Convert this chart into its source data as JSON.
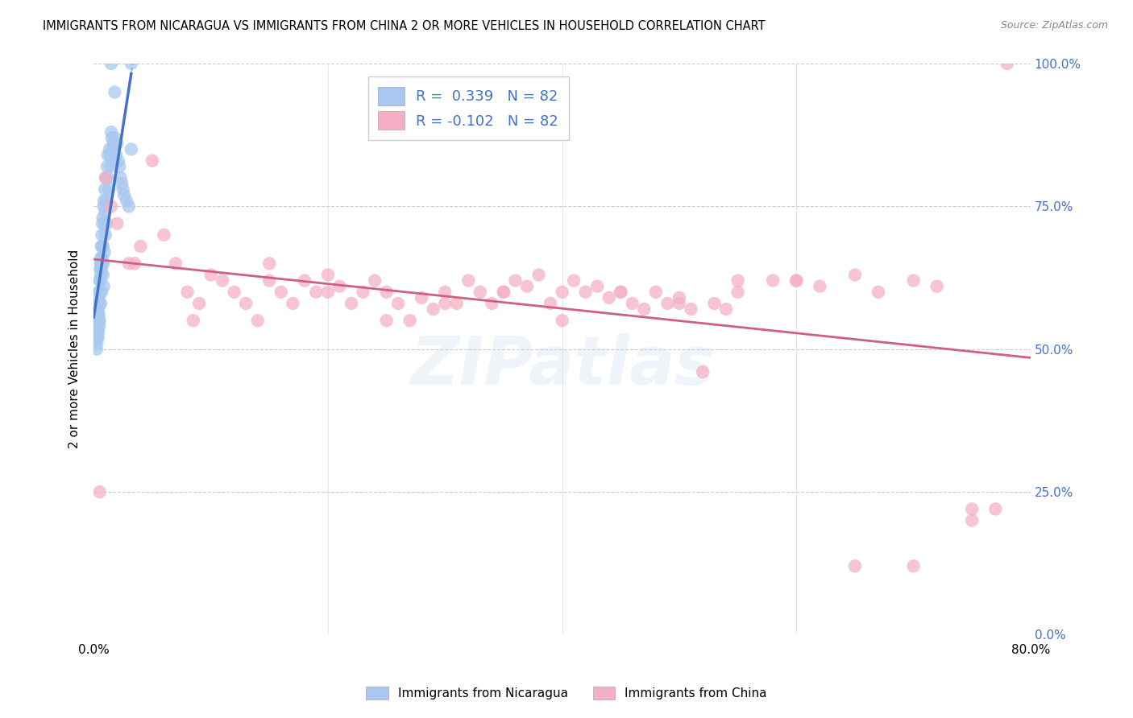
{
  "title": "IMMIGRANTS FROM NICARAGUA VS IMMIGRANTS FROM CHINA 2 OR MORE VEHICLES IN HOUSEHOLD CORRELATION CHART",
  "source": "Source: ZipAtlas.com",
  "ylabel": "2 or more Vehicles in Household",
  "ytick_vals": [
    0.0,
    25.0,
    50.0,
    75.0,
    100.0
  ],
  "xlim": [
    0.0,
    80.0
  ],
  "ylim": [
    0.0,
    100.0
  ],
  "legend_blue_label": "Immigrants from Nicaragua",
  "legend_pink_label": "Immigrants from China",
  "R_blue": 0.339,
  "N_blue": 82,
  "R_pink": -0.102,
  "N_pink": 82,
  "blue_color": "#a8c8f0",
  "pink_color": "#f5b0c5",
  "blue_line_color": "#4472c4",
  "pink_line_color": "#d06080",
  "watermark": "ZIPatlas",
  "blue_x": [
    0.15,
    0.18,
    0.2,
    0.22,
    0.22,
    0.25,
    0.25,
    0.28,
    0.3,
    0.3,
    0.32,
    0.35,
    0.35,
    0.38,
    0.38,
    0.4,
    0.4,
    0.42,
    0.42,
    0.45,
    0.45,
    0.48,
    0.5,
    0.5,
    0.52,
    0.52,
    0.55,
    0.58,
    0.6,
    0.6,
    0.62,
    0.65,
    0.65,
    0.68,
    0.7,
    0.72,
    0.75,
    0.78,
    0.8,
    0.82,
    0.85,
    0.88,
    0.9,
    0.92,
    0.95,
    0.98,
    1.0,
    1.05,
    1.08,
    1.1,
    1.15,
    1.2,
    1.25,
    1.3,
    1.35,
    1.4,
    1.45,
    1.5,
    1.55,
    1.6,
    1.7,
    1.8,
    1.9,
    2.0,
    2.1,
    2.2,
    2.3,
    2.4,
    2.5,
    2.6,
    2.8,
    3.0,
    3.2,
    3.2,
    1.5,
    1.8,
    0.55,
    0.65,
    0.7,
    0.75,
    0.8,
    0.85
  ],
  "blue_y": [
    55,
    52,
    53,
    54,
    56,
    50,
    52,
    51,
    53,
    55,
    54,
    56,
    57,
    58,
    52,
    53,
    55,
    57,
    59,
    60,
    56,
    54,
    58,
    62,
    60,
    55,
    64,
    65,
    63,
    58,
    66,
    68,
    65,
    60,
    70,
    68,
    72,
    73,
    68,
    65,
    75,
    76,
    72,
    67,
    78,
    74,
    70,
    80,
    76,
    72,
    82,
    84,
    80,
    78,
    85,
    84,
    82,
    88,
    87,
    85,
    86,
    87,
    84,
    86,
    83,
    82,
    80,
    79,
    78,
    77,
    76,
    75,
    85,
    100,
    100,
    95,
    62,
    64,
    65,
    66,
    63,
    61
  ],
  "pink_x": [
    0.5,
    1.0,
    1.5,
    2.0,
    3.0,
    4.0,
    5.0,
    6.0,
    7.0,
    8.0,
    9.0,
    10.0,
    11.0,
    12.0,
    13.0,
    14.0,
    15.0,
    16.0,
    17.0,
    18.0,
    19.0,
    20.0,
    21.0,
    22.0,
    23.0,
    24.0,
    25.0,
    26.0,
    27.0,
    28.0,
    29.0,
    30.0,
    31.0,
    32.0,
    33.0,
    34.0,
    35.0,
    36.0,
    37.0,
    38.0,
    39.0,
    40.0,
    41.0,
    42.0,
    43.0,
    44.0,
    45.0,
    46.0,
    47.0,
    48.0,
    49.0,
    50.0,
    51.0,
    52.0,
    53.0,
    54.0,
    55.0,
    58.0,
    60.0,
    62.0,
    65.0,
    67.0,
    70.0,
    72.0,
    75.0,
    77.0,
    3.5,
    8.5,
    15.0,
    20.0,
    25.0,
    30.0,
    35.0,
    40.0,
    45.0,
    50.0,
    55.0,
    60.0,
    65.0,
    70.0,
    75.0,
    78.0
  ],
  "pink_y": [
    25,
    80,
    75,
    72,
    65,
    68,
    83,
    70,
    65,
    60,
    58,
    63,
    62,
    60,
    58,
    55,
    62,
    60,
    58,
    62,
    60,
    63,
    61,
    58,
    60,
    62,
    60,
    58,
    55,
    59,
    57,
    60,
    58,
    62,
    60,
    58,
    60,
    62,
    61,
    63,
    58,
    60,
    62,
    60,
    61,
    59,
    60,
    58,
    57,
    60,
    58,
    59,
    57,
    46,
    58,
    57,
    60,
    62,
    62,
    61,
    63,
    60,
    62,
    61,
    22,
    22,
    65,
    55,
    65,
    60,
    55,
    58,
    60,
    55,
    60,
    58,
    62,
    62,
    12,
    12,
    20,
    100
  ]
}
